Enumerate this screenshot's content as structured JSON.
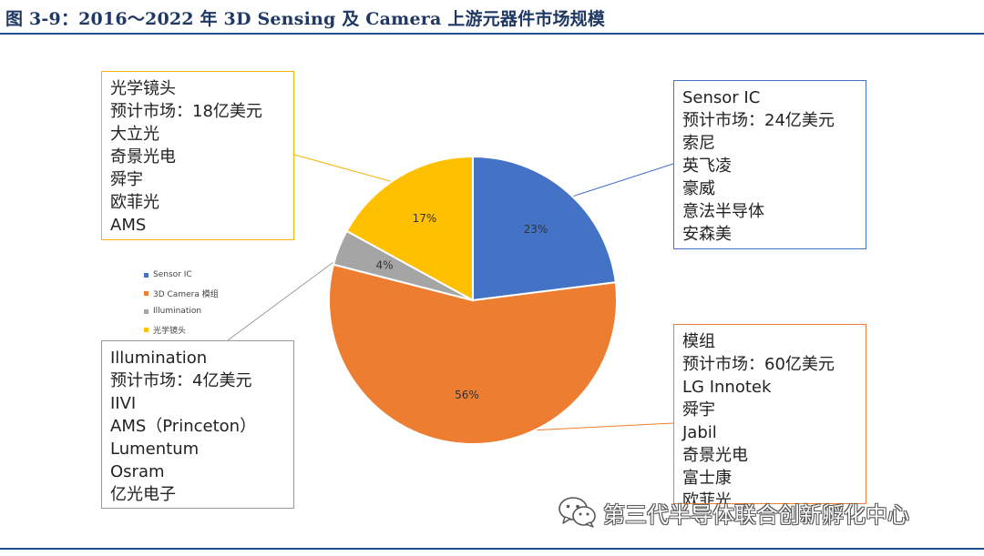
{
  "title": "图 3-9：2016～2022 年 3D Sensing 及 Camera 上游元器件市场规模",
  "chart_data": {
    "type": "pie",
    "slices": [
      {
        "name": "Sensor IC",
        "value": 23,
        "label": "23%",
        "color": "#4472c4"
      },
      {
        "name": "3D Camera 模组",
        "value": 56,
        "label": "56%",
        "color": "#ed7d31"
      },
      {
        "name": "Illumination",
        "value": 4,
        "label": "4%",
        "color": "#a5a5a5"
      },
      {
        "name": "光学镜头",
        "value": 17,
        "label": "17%",
        "color": "#ffc000"
      }
    ],
    "legend": {
      "position": "left",
      "items": [
        "Sensor IC",
        "3D Camera 模组",
        "Illumination",
        "光学镜头"
      ]
    },
    "annotations": {
      "lens": {
        "color": "#f4b400",
        "lines": [
          "光学镜头",
          "预计市场：18亿美元",
          "大立光",
          "奇景光电",
          "舜宇",
          "欧菲光",
          "AMS"
        ]
      },
      "sensor": {
        "color": "#4472c4",
        "lines": [
          "Sensor IC",
          "预计市场：24亿美元",
          "索尼",
          "英飞凌",
          "豪威",
          "意法半导体",
          "安森美"
        ]
      },
      "illumination": {
        "color": "#9a9a9a",
        "lines": [
          "Illumination",
          "预计市场：4亿美元",
          "IIVI",
          "AMS（Princeton）",
          "Lumentum",
          "Osram",
          "亿光电子"
        ]
      },
      "module": {
        "color": "#ed7d31",
        "lines": [
          "模组",
          "预计市场：60亿美元",
          "LG Innotek",
          "舜宇",
          "Jabil",
          "奇景光电",
          "富士康",
          "欧菲光"
        ]
      }
    }
  },
  "watermark": {
    "text": "第三代半导体联合创新孵化中心",
    "icon": "wechat-icon"
  }
}
